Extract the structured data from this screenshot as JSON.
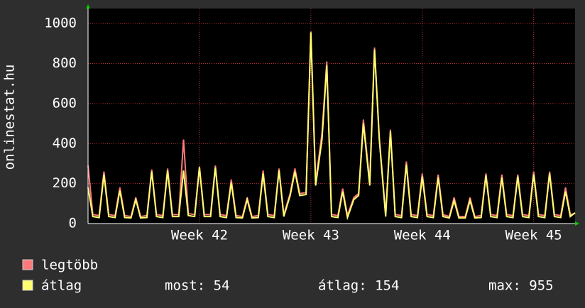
{
  "chart_data": {
    "type": "line",
    "ylabel": "onlinestat.hu",
    "xlim": [
      0,
      30.6
    ],
    "ylim": [
      0,
      1075
    ],
    "xticks": [
      {
        "value": 7,
        "label": "Week 42"
      },
      {
        "value": 14,
        "label": "Week 43"
      },
      {
        "value": 21,
        "label": "Week 44"
      },
      {
        "value": 28,
        "label": "Week 45"
      }
    ],
    "yticks": [
      0,
      200,
      400,
      600,
      800,
      1000
    ],
    "grid": true,
    "x": [
      0,
      0.3,
      0.7,
      1,
      1.3,
      1.7,
      2,
      2.3,
      2.7,
      3,
      3.3,
      3.7,
      4,
      4.3,
      4.7,
      5,
      5.3,
      5.7,
      6,
      6.3,
      6.7,
      7,
      7.3,
      7.7,
      8,
      8.3,
      8.7,
      9,
      9.3,
      9.7,
      10,
      10.3,
      10.7,
      11,
      11.3,
      11.7,
      12,
      12.3,
      12.7,
      13,
      13.3,
      13.7,
      14,
      14.3,
      14.7,
      15,
      15.3,
      15.7,
      16,
      16.3,
      16.7,
      17,
      17.3,
      17.7,
      18,
      18.3,
      18.7,
      19,
      19.3,
      19.7,
      20,
      20.3,
      20.7,
      21,
      21.3,
      21.7,
      22,
      22.3,
      22.7,
      23,
      23.3,
      23.7,
      24,
      24.3,
      24.7,
      25,
      25.3,
      25.7,
      26,
      26.3,
      26.7,
      27,
      27.3,
      27.7,
      28,
      28.3,
      28.7,
      29,
      29.3,
      29.7,
      30,
      30.3,
      30.6
    ],
    "series": [
      {
        "name": "legtöbb",
        "color": "#ff7a7a",
        "values": [
          290,
          45,
          40,
          260,
          45,
          40,
          180,
          40,
          35,
          130,
          35,
          40,
          270,
          45,
          40,
          275,
          45,
          45,
          420,
          50,
          45,
          285,
          45,
          45,
          290,
          45,
          40,
          220,
          40,
          35,
          130,
          35,
          40,
          265,
          45,
          40,
          275,
          45,
          150,
          275,
          150,
          155,
          960,
          210,
          450,
          810,
          45,
          40,
          175,
          40,
          130,
          150,
          520,
          210,
          880,
          430,
          45,
          470,
          45,
          40,
          310,
          45,
          40,
          250,
          45,
          40,
          245,
          45,
          35,
          130,
          35,
          35,
          130,
          35,
          40,
          250,
          45,
          40,
          245,
          45,
          40,
          245,
          45,
          40,
          260,
          45,
          40,
          260,
          45,
          40,
          180,
          45,
          50
        ]
      },
      {
        "name": "átlag",
        "color": "#ffff70",
        "values": [
          180,
          35,
          30,
          245,
          35,
          30,
          165,
          30,
          28,
          120,
          28,
          30,
          260,
          35,
          30,
          265,
          35,
          35,
          265,
          40,
          35,
          280,
          35,
          35,
          280,
          35,
          30,
          205,
          30,
          28,
          120,
          28,
          30,
          250,
          35,
          30,
          265,
          35,
          140,
          260,
          140,
          145,
          955,
          190,
          420,
          790,
          35,
          30,
          160,
          30,
          120,
          140,
          500,
          190,
          870,
          420,
          35,
          460,
          35,
          30,
          295,
          35,
          30,
          235,
          35,
          30,
          230,
          35,
          28,
          115,
          28,
          28,
          115,
          28,
          30,
          240,
          35,
          30,
          230,
          35,
          30,
          235,
          35,
          30,
          245,
          35,
          30,
          250,
          35,
          30,
          160,
          35,
          54
        ]
      }
    ],
    "stats": [
      "most: 54",
      "átlag: 154",
      "max: 955"
    ]
  }
}
